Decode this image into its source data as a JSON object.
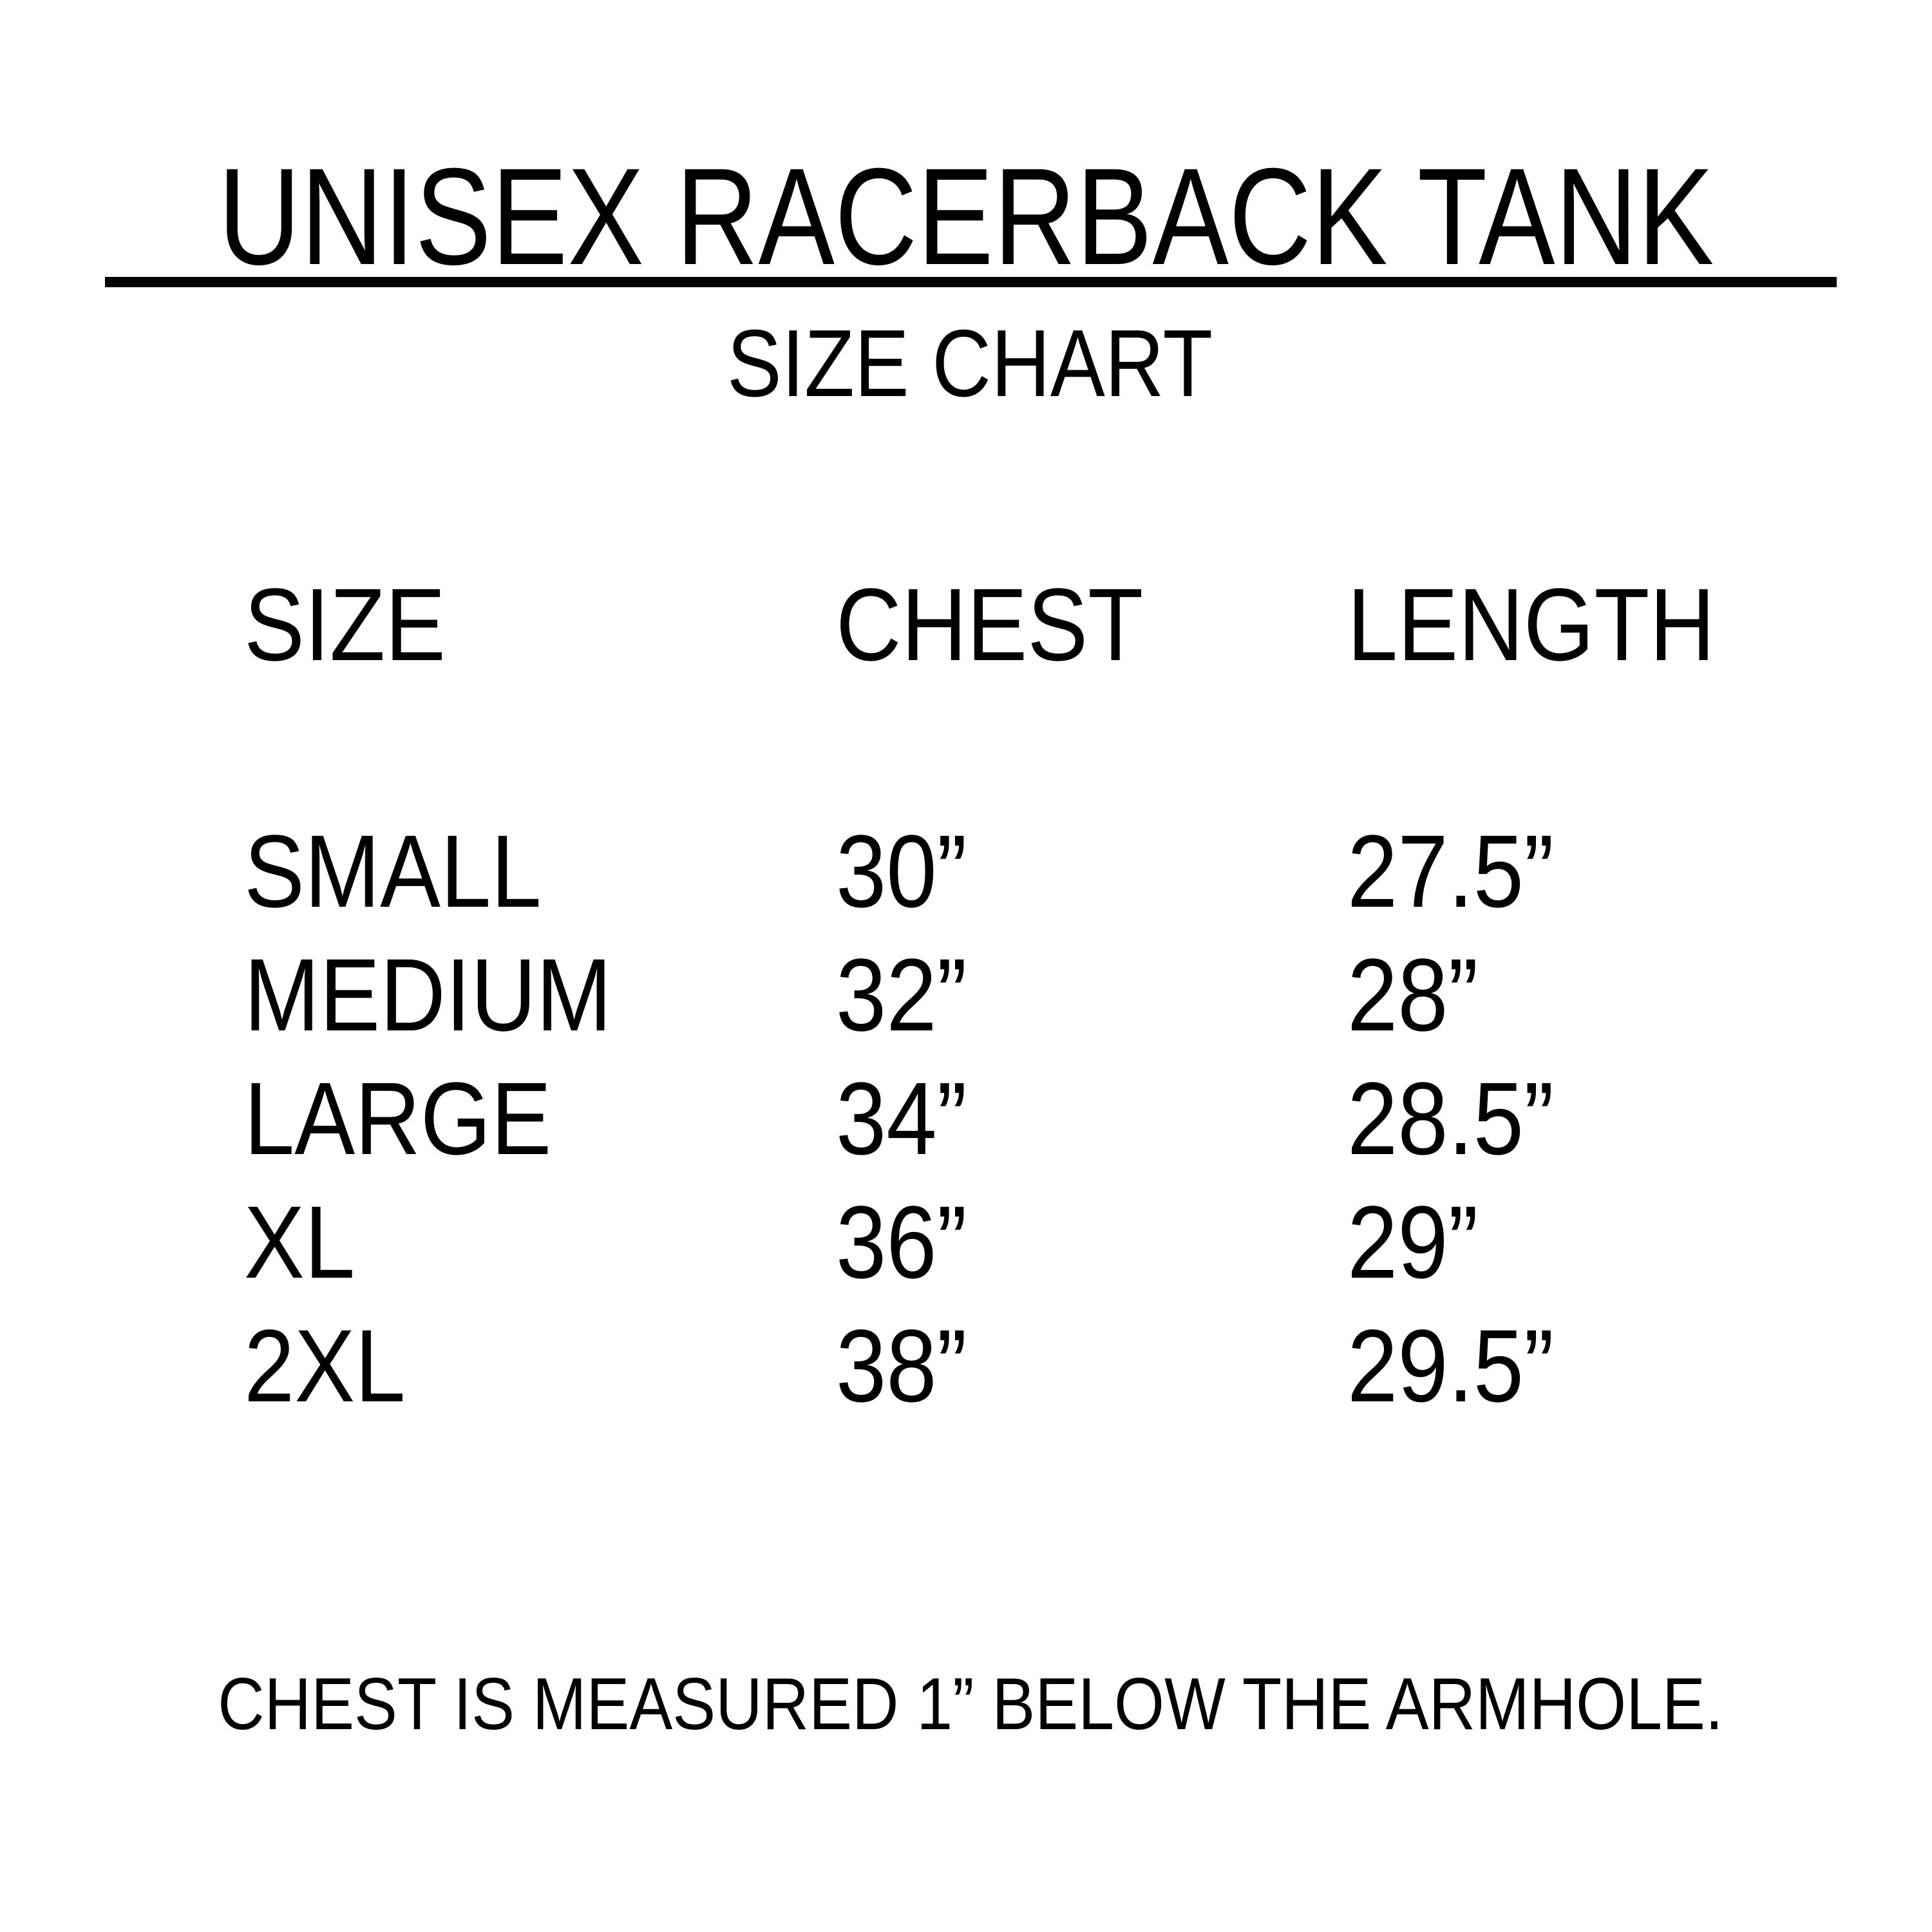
{
  "title": "UNISEX RACERBACK TANK",
  "subtitle": "SIZE CHART",
  "table": {
    "headers": [
      "SIZE",
      "CHEST",
      "LENGTH"
    ],
    "rows": [
      [
        "SMALL",
        "30”",
        "27.5”"
      ],
      [
        "MEDIUM",
        "32”",
        "28”"
      ],
      [
        "LARGE",
        "34”",
        "28.5”"
      ],
      [
        "XL",
        "36”",
        "29”"
      ],
      [
        "2XL",
        "38”",
        "29.5”"
      ]
    ]
  },
  "footer": "CHEST IS MEASURED 1” BELOW THE ARMHOLE."
}
